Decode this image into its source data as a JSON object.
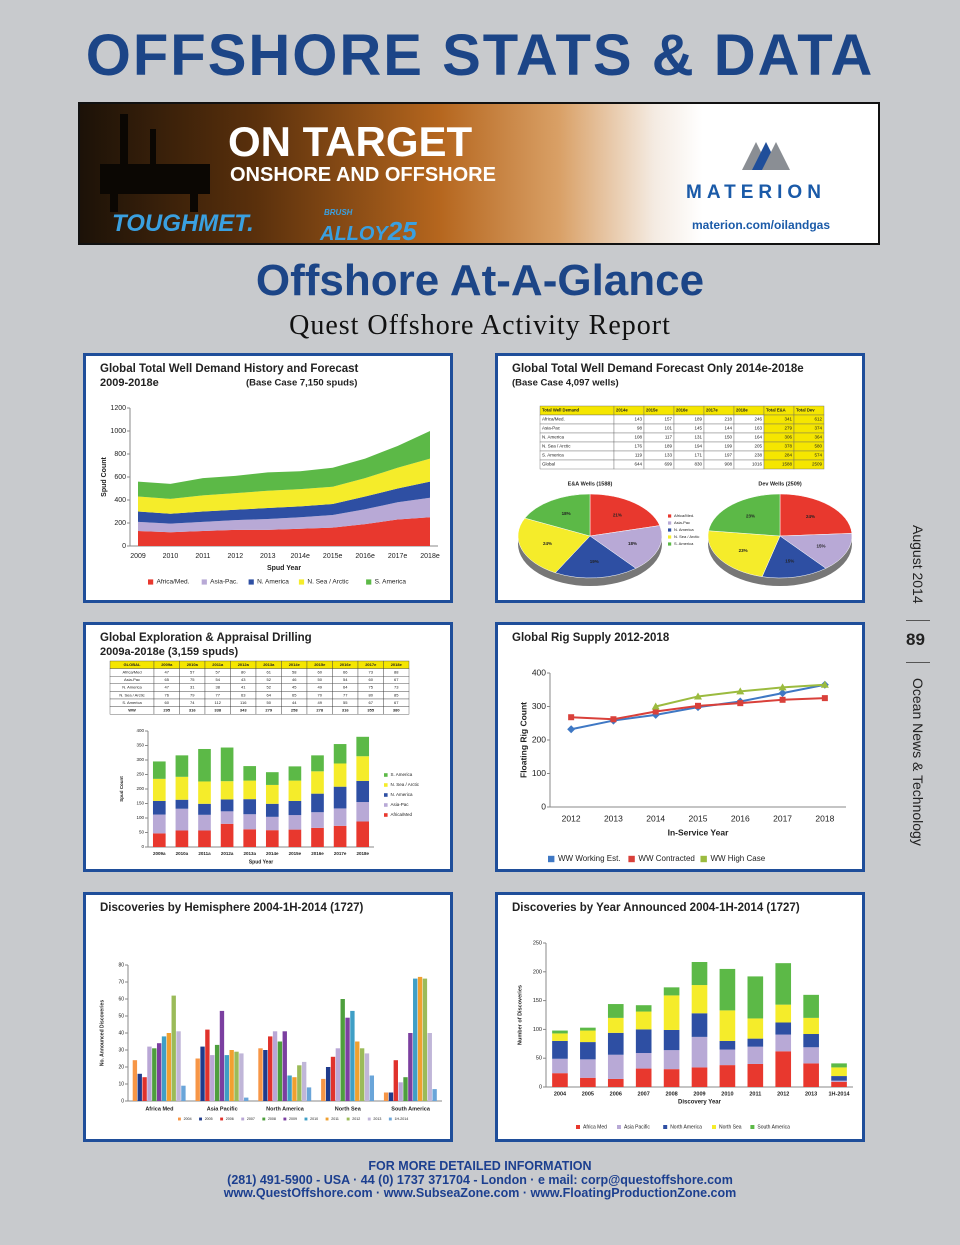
{
  "header": {
    "title": "OFFSHORE STATS & DATA"
  },
  "ad": {
    "headline": "ON TARGET",
    "subhead": "ONSHORE AND OFFSHORE",
    "brand1": "TOUGHMET.",
    "brand2_top": "BRUSH",
    "brand2": "ALLOY",
    "brand2_num": "25",
    "company": "MATERION",
    "url": "materion.com/oilandgas"
  },
  "section": {
    "title": "Offshore At-A-Glance",
    "subtitle": "Quest Offshore Activity Report"
  },
  "sidebar": {
    "issue": "August 2014",
    "page": "89",
    "publication": "Ocean News & Technology"
  },
  "footer": {
    "lines": [
      "FOR MORE DETAILED INFORMATION",
      "(281) 491-5900 - USA  ·  44 (0) 1737 371704 - London  ·  e mail: corp@questoffshore.com",
      "www.QuestOffshore.com  ·  www.SubseaZone.com  ·  www.FloatingProductionZone.com"
    ]
  },
  "chart_data": [
    {
      "type": "area",
      "title": "Global Total Well Demand History and Forecast",
      "subtitle": "2009-2018e",
      "note": "(Base Case 7,150 spuds)",
      "categories": [
        "2009",
        "2010",
        "2011",
        "2012",
        "2013",
        "2014e",
        "2015e",
        "2016e",
        "2017e",
        "2018e"
      ],
      "series": [
        {
          "name": "Africa/Med.",
          "color": "#e8382e",
          "values": [
            130,
            120,
            130,
            140,
            140,
            150,
            160,
            190,
            230,
            250
          ]
        },
        {
          "name": "Asia-Pac.",
          "color": "#b8a9d6",
          "values": [
            80,
            75,
            80,
            85,
            95,
            100,
            110,
            130,
            150,
            170
          ]
        },
        {
          "name": "N. America",
          "color": "#2e4fa3",
          "values": [
            90,
            85,
            90,
            90,
            95,
            95,
            95,
            110,
            120,
            140
          ]
        },
        {
          "name": "N. Sea / Arctic",
          "color": "#f5ec2a",
          "values": [
            130,
            130,
            140,
            145,
            150,
            150,
            150,
            160,
            180,
            200
          ]
        },
        {
          "name": "S. America",
          "color": "#5cb947",
          "values": [
            130,
            130,
            150,
            150,
            160,
            155,
            165,
            170,
            190,
            240
          ]
        }
      ],
      "ylim": [
        0,
        1200
      ],
      "yticks": [
        0,
        200,
        400,
        600,
        800,
        1000,
        1200
      ],
      "xlabel": "Spud Year",
      "ylabel": "Spud Count",
      "grid": false
    },
    {
      "type": "pie",
      "title": "Global Total Well Demand Forecast Only 2014e-2018e",
      "subtitle": "(Base Case 4,097 wells)",
      "table": {
        "columns": [
          "Total Well Demand",
          "2014e",
          "2015e",
          "2016e",
          "2017e",
          "2018e",
          "Total E&A",
          "Total Dev"
        ],
        "rows": [
          [
            "Africa/Med.",
            143,
            157,
            189,
            218,
            246,
            341,
            612
          ],
          [
            "Asia-Pac",
            98,
            101,
            145,
            144,
            163,
            279,
            374
          ],
          [
            "N. America",
            108,
            117,
            131,
            150,
            164,
            306,
            364
          ],
          [
            "N. Sea / Arctic",
            176,
            189,
            194,
            199,
            205,
            378,
            580
          ],
          [
            "S. America",
            119,
            133,
            171,
            197,
            238,
            284,
            574
          ],
          [
            "Global",
            644,
            699,
            830,
            908,
            1016,
            1588,
            2509
          ]
        ]
      },
      "legend": {
        "names": [
          "Africa/Med.",
          "Asia-Pac",
          "N. America",
          "N. Sea / Arctic",
          "S. America"
        ],
        "colors": [
          "#e8382e",
          "#b8a9d6",
          "#2e4fa3",
          "#f5ec2a",
          "#5cb947"
        ]
      },
      "pies": [
        {
          "title": "E&A Wells (1588)",
          "values": [
            21,
            18,
            19,
            24,
            18
          ],
          "value_labels": [
            "21%",
            "18%",
            "19%",
            "24%",
            "18%"
          ]
        },
        {
          "title": "Dev Wells (2509)",
          "values": [
            24,
            15,
            15,
            23,
            23
          ],
          "value_labels": [
            "24%",
            "15%",
            "15%",
            "23%",
            "23%"
          ]
        }
      ]
    },
    {
      "type": "stacked_bar",
      "title": "Global Exploration & Appraisal Drilling",
      "subtitle": "2009a-2018e (3,159 spuds)",
      "table_header": "GLOBAL",
      "totals_name": "WW",
      "totals": [
        295,
        316,
        338,
        343,
        279,
        258,
        278,
        316,
        355,
        380
      ],
      "categories": [
        "2009a",
        "2010a",
        "2011a",
        "2012a",
        "2013a",
        "2014e",
        "2015e",
        "2016e",
        "2017e",
        "2018e"
      ],
      "series": [
        {
          "name": "Africa/Med",
          "color": "#e8382e",
          "values": [
            47,
            57,
            57,
            80,
            61,
            58,
            60,
            66,
            73,
            88
          ]
        },
        {
          "name": "Asia-Pac",
          "color": "#b8a9d6",
          "values": [
            65,
            75,
            54,
            43,
            52,
            46,
            50,
            54,
            60,
            67
          ]
        },
        {
          "name": "N. America",
          "color": "#2e4fa3",
          "values": [
            47,
            31,
            38,
            41,
            52,
            45,
            49,
            64,
            75,
            73
          ]
        },
        {
          "name": "N. Sea / Arctic",
          "color": "#f5ec2a",
          "values": [
            76,
            79,
            77,
            63,
            64,
            65,
            70,
            77,
            80,
            85
          ]
        },
        {
          "name": "S. America",
          "color": "#5cb947",
          "values": [
            60,
            74,
            112,
            116,
            50,
            44,
            49,
            55,
            67,
            67
          ]
        }
      ],
      "ylim": [
        0,
        400
      ],
      "yticks": [
        0,
        50,
        100,
        150,
        200,
        250,
        300,
        350,
        400
      ],
      "xlabel": "Spud Year",
      "ylabel": "Spud Count",
      "grid": false
    },
    {
      "type": "line",
      "title": "Global Rig Supply 2012-2018",
      "categories": [
        "2012",
        "2013",
        "2014",
        "2015",
        "2016",
        "2017",
        "2018"
      ],
      "series": [
        {
          "name": "WW Working Est.",
          "color": "#3f78c4",
          "marker": "diamond",
          "values": [
            232,
            258,
            275,
            298,
            315,
            340,
            365
          ]
        },
        {
          "name": "WW Contracted",
          "color": "#d9403a",
          "marker": "square",
          "values": [
            268,
            262,
            285,
            302,
            310,
            320,
            325
          ]
        },
        {
          "name": "WW High Case",
          "color": "#9bbb3f",
          "marker": "triangle",
          "values": [
            null,
            null,
            300,
            330,
            345,
            357,
            365
          ]
        }
      ],
      "ylim": [
        0,
        400
      ],
      "yticks": [
        0,
        100,
        200,
        300,
        400
      ],
      "xlabel": "In-Service Year",
      "ylabel": "Floating Rig Count",
      "grid": false
    },
    {
      "type": "grouped_bar",
      "title": "Discoveries by Hemisphere 2004-1H-2014 (1727)",
      "categories": [
        "Africa Med",
        "Asia Pacific",
        "North America",
        "North Sea",
        "South America"
      ],
      "series": [
        {
          "name": "2004",
          "color": "#f79646",
          "values": [
            24,
            25,
            31,
            13,
            5
          ]
        },
        {
          "name": "2005",
          "color": "#1f3b8c",
          "values": [
            16,
            32,
            30,
            20,
            5
          ]
        },
        {
          "name": "2006",
          "color": "#e0322c",
          "values": [
            14,
            42,
            38,
            26,
            24
          ]
        },
        {
          "name": "2007",
          "color": "#b9a7d6",
          "values": [
            32,
            27,
            41,
            31,
            11
          ]
        },
        {
          "name": "2008",
          "color": "#4e9f3d",
          "values": [
            31,
            33,
            35,
            60,
            14
          ]
        },
        {
          "name": "2009",
          "color": "#7b3fa0",
          "values": [
            34,
            53,
            41,
            49,
            40
          ]
        },
        {
          "name": "2010",
          "color": "#3f9fc6",
          "values": [
            38,
            27,
            15,
            53,
            72
          ]
        },
        {
          "name": "2011",
          "color": "#f0a030",
          "values": [
            40,
            30,
            14,
            35,
            73
          ]
        },
        {
          "name": "2012",
          "color": "#9bbb59",
          "values": [
            62,
            29,
            21,
            31,
            72
          ]
        },
        {
          "name": "2013",
          "color": "#c0b6d8",
          "values": [
            41,
            28,
            23,
            28,
            40
          ]
        },
        {
          "name": "1H-2014",
          "color": "#6aa5d9",
          "values": [
            9,
            2,
            8,
            15,
            7
          ]
        }
      ],
      "ylim": [
        0,
        80
      ],
      "yticks": [
        0,
        10,
        20,
        30,
        40,
        50,
        60,
        70,
        80
      ],
      "ylabel": "No. Announced Discoveries",
      "grid": false
    },
    {
      "type": "stacked_bar",
      "title": "Discoveries by Year Announced 2004-1H-2014 (1727)",
      "categories": [
        "2004",
        "2005",
        "2006",
        "2007",
        "2008",
        "2009",
        "2010",
        "2011",
        "2012",
        "2013",
        "1H-2014"
      ],
      "series": [
        {
          "name": "Africa Med",
          "color": "#e8382e",
          "values": [
            24,
            16,
            14,
            32,
            31,
            34,
            38,
            40,
            62,
            41,
            9
          ]
        },
        {
          "name": "Asia Pacific",
          "color": "#b8a9d6",
          "values": [
            25,
            32,
            42,
            27,
            33,
            53,
            27,
            30,
            29,
            28,
            2
          ]
        },
        {
          "name": "North America",
          "color": "#2e4fa3",
          "values": [
            31,
            30,
            38,
            41,
            35,
            41,
            15,
            14,
            21,
            23,
            8
          ]
        },
        {
          "name": "North Sea",
          "color": "#f5ec2a",
          "values": [
            13,
            20,
            26,
            31,
            60,
            49,
            53,
            35,
            31,
            28,
            15
          ]
        },
        {
          "name": "South America",
          "color": "#5cb947",
          "values": [
            5,
            5,
            24,
            11,
            14,
            40,
            72,
            73,
            72,
            40,
            7
          ]
        }
      ],
      "ylim": [
        0,
        250
      ],
      "yticks": [
        0,
        50,
        100,
        150,
        200,
        250
      ],
      "xlabel": "Discovery Year",
      "ylabel": "Number of Discoveries",
      "grid": false
    }
  ]
}
